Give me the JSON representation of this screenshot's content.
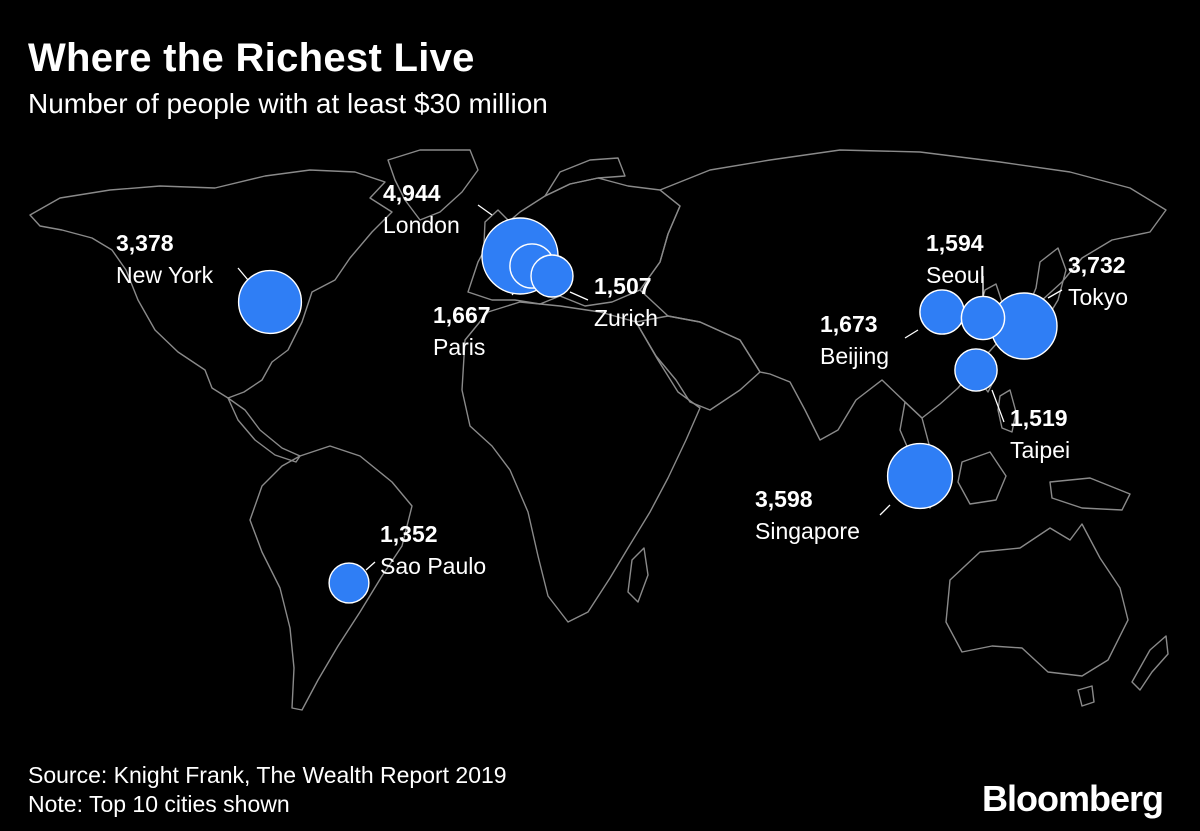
{
  "title": "Where the Richest Live",
  "subtitle": "Number of people with at least $30 million",
  "source": "Source: Knight Frank, The Wealth Report 2019",
  "note": "Note: Top 10 cities shown",
  "brand": "Bloomberg",
  "colors": {
    "bubble": "#2f7ef5",
    "background": "#000000",
    "land_outline": "#8a8a8a"
  },
  "cities": [
    {
      "name": "London",
      "value": 4944,
      "value_label": "4,944"
    },
    {
      "name": "Tokyo",
      "value": 3732,
      "value_label": "3,732"
    },
    {
      "name": "Singapore",
      "value": 3598,
      "value_label": "3,598"
    },
    {
      "name": "New York",
      "value": 3378,
      "value_label": "3,378"
    },
    {
      "name": "Beijing",
      "value": 1673,
      "value_label": "1,673"
    },
    {
      "name": "Paris",
      "value": 1667,
      "value_label": "1,667"
    },
    {
      "name": "Seoul",
      "value": 1594,
      "value_label": "1,594"
    },
    {
      "name": "Taipei",
      "value": 1519,
      "value_label": "1,519"
    },
    {
      "name": "Zurich",
      "value": 1507,
      "value_label": "1,507"
    },
    {
      "name": "Sao Paulo",
      "value": 1352,
      "value_label": "1,352"
    }
  ]
}
